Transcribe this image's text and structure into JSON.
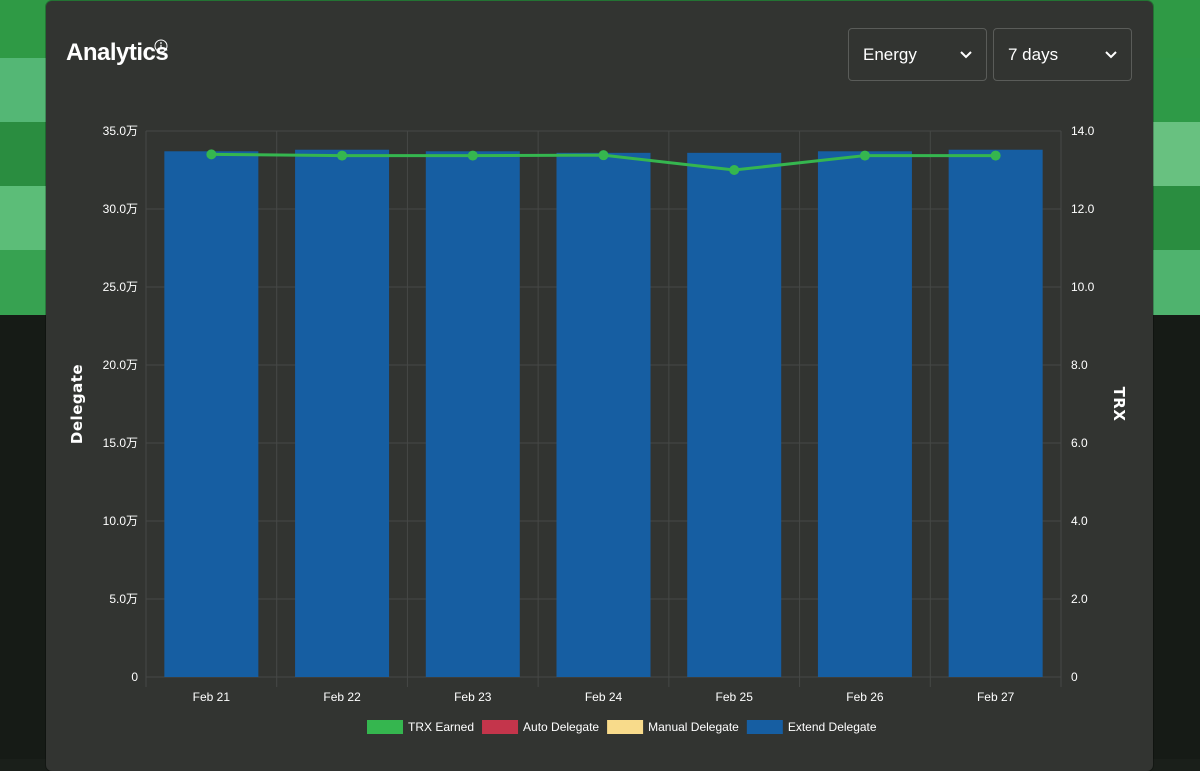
{
  "header": {
    "title": "Analytics",
    "info_icon": "info-circle-icon"
  },
  "controls": {
    "metric": {
      "value": "Energy",
      "icon": "chevron-down-icon"
    },
    "range": {
      "value": "7 days",
      "icon": "chevron-down-icon"
    }
  },
  "colors": {
    "page_green": "#2f9a45",
    "card_bg": "#323431",
    "bar": "#165ea2",
    "line": "#35b64f",
    "auto": "#c4354b",
    "manual": "#f8db8b",
    "grid": "#464846"
  },
  "chart_data": {
    "type": "bar",
    "categories": [
      "Feb 21",
      "Feb 22",
      "Feb 23",
      "Feb 24",
      "Feb 25",
      "Feb 26",
      "Feb 27"
    ],
    "y_left": {
      "label": "Delegate",
      "range": [
        0,
        350000
      ],
      "ticks": [
        "0",
        "5.0万",
        "10.0万",
        "15.0万",
        "20.0万",
        "25.0万",
        "30.0万",
        "35.0万"
      ],
      "tick_values": [
        0,
        50000,
        100000,
        150000,
        200000,
        250000,
        300000,
        350000
      ]
    },
    "y_right": {
      "label": "TRX",
      "range": [
        0,
        14
      ],
      "ticks": [
        "0",
        "2.0",
        "4.0",
        "6.0",
        "8.0",
        "10.0",
        "12.0",
        "14.0"
      ],
      "tick_values": [
        0,
        2,
        4,
        6,
        8,
        10,
        12,
        14
      ]
    },
    "series": [
      {
        "name": "TRX Earned",
        "kind": "line",
        "axis": "right",
        "color": "#35b64f",
        "values": [
          13.4,
          13.37,
          13.37,
          13.38,
          13.0,
          13.37,
          13.37
        ]
      },
      {
        "name": "Auto Delegate",
        "kind": "bar",
        "axis": "left",
        "color": "#c4354b",
        "values": [
          0,
          0,
          0,
          0,
          0,
          0,
          0
        ]
      },
      {
        "name": "Manual Delegate",
        "kind": "bar",
        "axis": "left",
        "color": "#f8db8b",
        "values": [
          0,
          0,
          0,
          0,
          0,
          0,
          0
        ]
      },
      {
        "name": "Extend Delegate",
        "kind": "bar",
        "axis": "left",
        "color": "#165ea2",
        "values": [
          337000,
          338000,
          337000,
          336000,
          336000,
          337000,
          338000
        ]
      }
    ],
    "legend_position": "bottom",
    "grid": true
  }
}
